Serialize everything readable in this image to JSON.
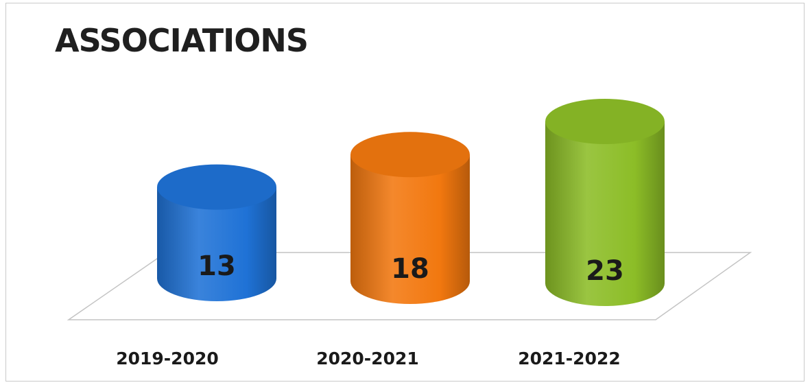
{
  "chart_data": {
    "type": "bar",
    "style": "3d-cylinder",
    "title": "ASSOCIATIONS",
    "categories": [
      "2019-2020",
      "2020-2021",
      "2021-2022"
    ],
    "values": [
      13,
      18,
      23
    ],
    "colors": [
      "#1f72d6",
      "#f2780f",
      "#8cbd27"
    ],
    "ylim": [
      0,
      23
    ],
    "grid": false,
    "legend": "none"
  }
}
